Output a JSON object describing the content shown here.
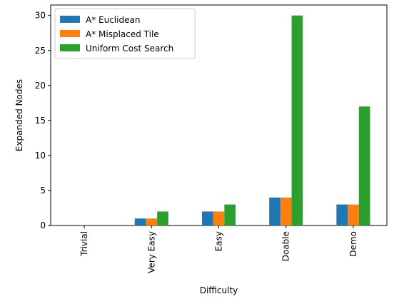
{
  "chart_data": {
    "type": "bar",
    "title": "",
    "xlabel": "Difficulty",
    "ylabel": "Expanded Nodes",
    "categories": [
      "Trivial",
      "Very Easy",
      "Easy",
      "Doable",
      "Demo"
    ],
    "series": [
      {
        "name": "A* Euclidean",
        "color": "#1f77b4",
        "values": [
          0,
          1,
          2,
          4,
          3
        ]
      },
      {
        "name": "A* Misplaced Tile",
        "color": "#ff7f0e",
        "values": [
          0,
          1,
          2,
          4,
          3
        ]
      },
      {
        "name": "Uniform Cost Search",
        "color": "#2ca02c",
        "values": [
          0,
          2,
          3,
          30,
          17
        ]
      }
    ],
    "ylim": [
      0,
      31.5
    ],
    "yticks": [
      0,
      5,
      10,
      15,
      20,
      25,
      30
    ],
    "grid": false,
    "legend_position": "upper-left",
    "xtick_rotation": "vertical"
  }
}
